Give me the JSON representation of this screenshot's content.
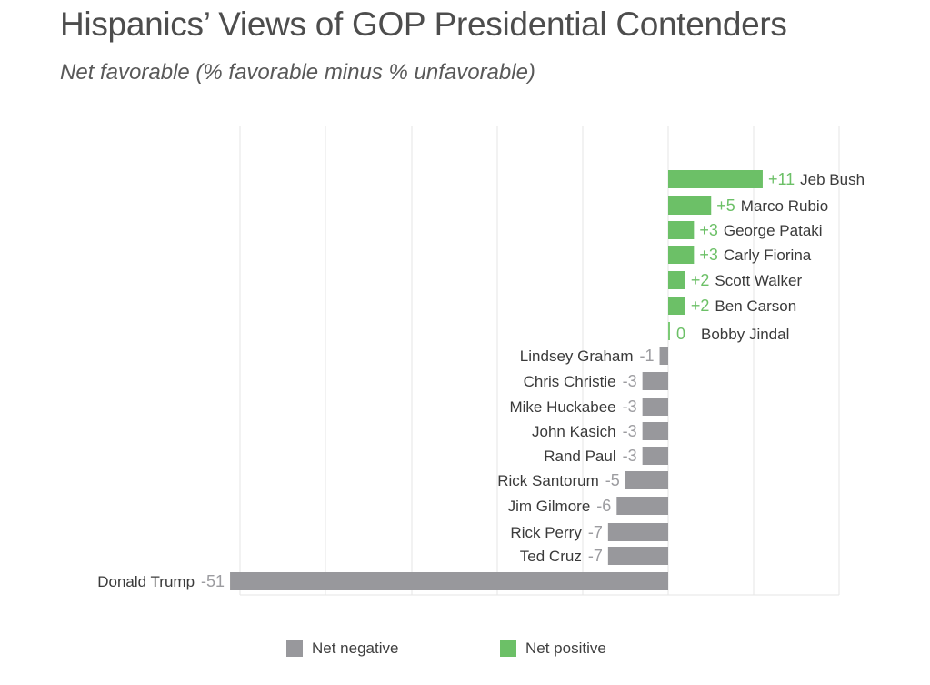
{
  "title": "Hispanics’ Views of GOP Presidential Contenders",
  "subtitle": "Net favorable (% favorable minus % unfavorable)",
  "colors": {
    "positive": "#6cc067",
    "negative": "#98989c",
    "grid": "#e6e6e6",
    "zero_bar": "#7ccb76"
  },
  "legend": {
    "negative_label": "Net negative",
    "positive_label": "Net positive"
  },
  "chart_data": {
    "type": "bar",
    "orientation": "horizontal",
    "title": "Hispanics’ Views of GOP Presidential Contenders",
    "subtitle": "Net favorable (% favorable minus % unfavorable)",
    "xlim": [
      -51,
      20
    ],
    "grid": true,
    "legend_placement": "bottom",
    "categories": [
      "Jeb Bush",
      "Marco Rubio",
      "George Pataki",
      "Carly Fiorina",
      "Scott Walker",
      "Ben Carson",
      "Bobby Jindal",
      "Lindsey Graham",
      "Chris Christie",
      "Mike Huckabee",
      "John Kasich",
      "Rand Paul",
      "Rick Santorum",
      "Jim Gilmore",
      "Rick Perry",
      "Ted Cruz",
      "Donald Trump"
    ],
    "values": [
      11,
      5,
      3,
      3,
      2,
      2,
      0,
      -1,
      -3,
      -3,
      -3,
      -3,
      -5,
      -6,
      -7,
      -7,
      -51
    ],
    "value_labels": [
      "+11",
      "+5",
      "+3",
      "+3",
      "+2",
      "+2",
      "0",
      "-1",
      "-3",
      "-3",
      "-3",
      "-3",
      "-5",
      "-6",
      "-7",
      "-7",
      "-51"
    ]
  }
}
